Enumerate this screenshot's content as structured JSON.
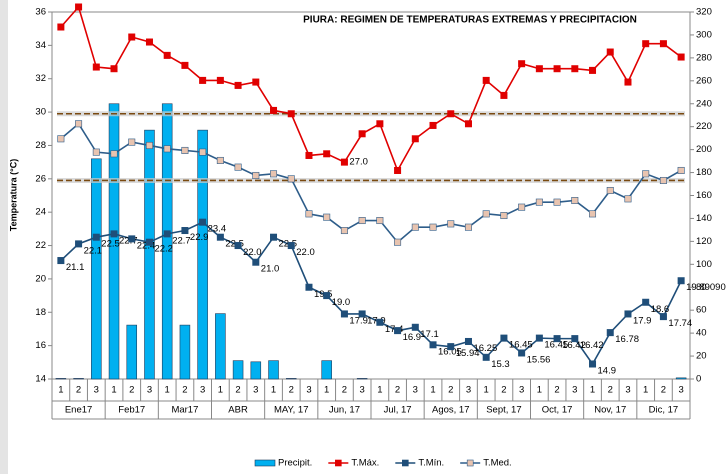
{
  "chart_data": {
    "type": "combo",
    "title": "PIURA: REGIMEN DE TEMPERATURAS EXTREMAS Y PRECIPITACION",
    "y_label": "Temperatura (°C)",
    "categories": [
      "1",
      "2",
      "3",
      "1",
      "2",
      "3",
      "1",
      "2",
      "3",
      "1",
      "2",
      "3",
      "1",
      "2",
      "3",
      "1",
      "2",
      "3",
      "1",
      "2",
      "3",
      "1",
      "2",
      "3",
      "1",
      "2",
      "3",
      "1",
      "2",
      "3",
      "1",
      "2",
      "3",
      "1",
      "2",
      "3"
    ],
    "months": [
      "Ene17",
      "Feb17",
      "Mar17",
      "ABR",
      "MAY, 17",
      "Jun, 17",
      "Jul, 17",
      "Agos, 17",
      "Sept, 17",
      "Oct, 17",
      "Nov, 17",
      "Dic, 17"
    ],
    "ylim": [
      14,
      36
    ],
    "yticks": [
      14,
      16,
      18,
      20,
      22,
      24,
      26,
      28,
      30,
      32,
      34,
      36
    ],
    "y2lim": [
      0,
      320
    ],
    "y2ticks": [
      0,
      20,
      40,
      60,
      80,
      100,
      120,
      140,
      160,
      180,
      200,
      220,
      240,
      260,
      280,
      300,
      320
    ],
    "reference_lines": [
      29.9,
      25.9
    ],
    "reference_color": "#7a4a10",
    "series": [
      {
        "name": "Precipit.",
        "type": "bar",
        "axis": "y2",
        "color": "#00b0f0",
        "values": [
          0.5,
          0.5,
          192,
          240,
          47,
          217,
          240,
          47,
          217,
          57,
          16,
          15,
          16,
          0.5,
          0,
          16,
          0,
          0.5,
          0,
          0,
          0,
          0,
          0,
          0,
          0,
          0,
          0,
          0,
          0,
          0,
          0,
          0,
          0,
          0,
          0,
          1
        ]
      },
      {
        "name": "T.Máx.",
        "type": "line",
        "color": "#e00000",
        "marker_color": "#e00000",
        "values": [
          35.1,
          36.3,
          32.7,
          32.6,
          34.5,
          34.2,
          33.4,
          32.8,
          31.9,
          31.9,
          31.6,
          31.8,
          30.1,
          29.9,
          27.4,
          27.5,
          27.0,
          28.7,
          29.3,
          26.5,
          28.4,
          29.2,
          29.9,
          29.3,
          31.9,
          31.0,
          32.9,
          32.6,
          32.6,
          32.6,
          32.5,
          33.6,
          31.8,
          34.1,
          34.1,
          33.3
        ],
        "value_labels": [
          null,
          null,
          null,
          null,
          null,
          null,
          null,
          null,
          null,
          null,
          null,
          null,
          null,
          null,
          null,
          null,
          "27.0",
          null,
          null,
          null,
          null,
          null,
          null,
          null,
          null,
          null,
          null,
          null,
          null,
          null,
          null,
          null,
          null,
          null,
          null,
          null
        ]
      },
      {
        "name": "T.Mín.",
        "type": "line",
        "color": "#1f4e79",
        "marker_color": "#1f4e79",
        "values": [
          21.1,
          22.1,
          22.5,
          22.7,
          22.4,
          22.2,
          22.7,
          22.9,
          23.4,
          22.5,
          22.0,
          21.0,
          22.5,
          22.0,
          19.5,
          19.0,
          17.9,
          17.9,
          17.4,
          16.9,
          17.1,
          16.05,
          15.94,
          16.25,
          15.3,
          16.45,
          15.56,
          16.45,
          16.42,
          16.42,
          14.9,
          16.78,
          17.9,
          18.6,
          17.74,
          19.890909
        ],
        "value_labels": [
          "21.1",
          "22.1",
          "22.5",
          "22.7",
          "22.4",
          "22.2",
          "22.7",
          "22.9",
          "23.4",
          "22.5",
          "22.0",
          "21.0",
          "22.5",
          "22.0",
          "19.5",
          "19.0",
          "17.9",
          "17.9",
          "17.4",
          "16.9",
          "17.1",
          "16.05",
          "15.94",
          "16.25",
          "15.3",
          "16.45",
          "15.56",
          "16.45",
          "16.42",
          "16.42",
          "14.9",
          "16.78",
          "17.9",
          "18.6",
          "17.74",
          "19.890909"
        ]
      },
      {
        "name": "T.Med.",
        "type": "line",
        "color": "#2e5d8a",
        "marker_color": "#e8c4b0",
        "values": [
          28.4,
          29.3,
          27.6,
          27.5,
          28.2,
          28.0,
          27.8,
          27.7,
          27.6,
          27.1,
          26.7,
          26.2,
          26.3,
          26.0,
          23.9,
          23.7,
          22.9,
          23.5,
          23.5,
          22.2,
          23.1,
          23.1,
          23.3,
          23.1,
          23.9,
          23.8,
          24.3,
          24.6,
          24.6,
          24.7,
          23.9,
          25.3,
          24.8,
          26.3,
          25.9,
          26.5
        ]
      }
    ]
  }
}
